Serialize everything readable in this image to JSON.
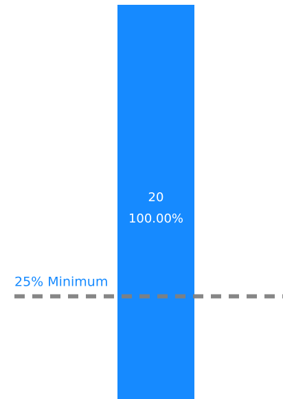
{
  "chart_data": {
    "type": "bar",
    "categories": [
      ""
    ],
    "series": [
      {
        "values": [
          20
        ]
      }
    ],
    "data_labels": [
      {
        "count": "20",
        "percent": "100.00%"
      }
    ],
    "reference_line": {
      "label": "25% Minimum",
      "value": 5
    },
    "ylim": [
      0,
      20
    ],
    "grid": false,
    "legend": false
  },
  "colors": {
    "bar": "#168AFF",
    "bar_label": "#FFFFFF",
    "reference_line": "#7F7F7F",
    "reference_label": "#168AFF",
    "background": "#FFFFFF"
  }
}
